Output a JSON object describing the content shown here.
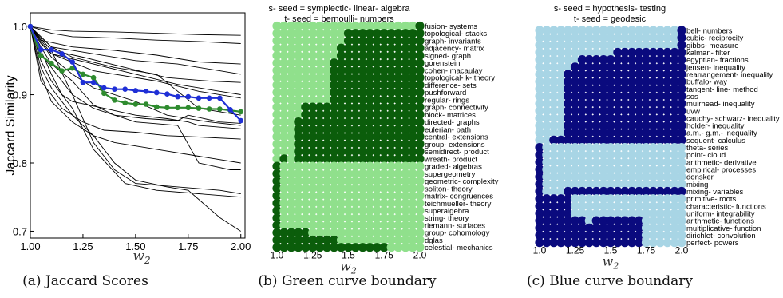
{
  "chart_data": [
    {
      "type": "line",
      "caption": "(a) Jaccard Scores",
      "xlabel": "w2",
      "ylabel": "Jaccard Similarity",
      "xlim": [
        1.0,
        2.02
      ],
      "ylim": [
        0.69,
        1.02
      ],
      "xticks": [
        "1.00",
        "1.25",
        "1.50",
        "1.75",
        "2.00"
      ],
      "yticks": [
        "0.7",
        "0.8",
        "0.9",
        "1.0"
      ],
      "highlight_colors": {
        "green": "#2e8b2e",
        "blue": "#1f2fd6"
      },
      "series": [
        {
          "color": "#2e8b2e",
          "marker": true,
          "x": [
            1.0,
            1.05,
            1.1,
            1.15,
            1.2,
            1.25,
            1.3,
            1.35,
            1.4,
            1.45,
            1.5,
            1.55,
            1.6,
            1.65,
            1.7,
            1.75,
            1.8,
            1.85,
            1.9,
            1.95,
            2.0
          ],
          "y": [
            1.0,
            0.957,
            0.946,
            0.935,
            0.939,
            0.93,
            0.925,
            0.902,
            0.892,
            0.888,
            0.886,
            0.886,
            0.882,
            0.881,
            0.881,
            0.881,
            0.88,
            0.879,
            0.879,
            0.877,
            0.875
          ]
        },
        {
          "color": "#1f2fd6",
          "marker": true,
          "x": [
            1.0,
            1.05,
            1.1,
            1.15,
            1.2,
            1.25,
            1.3,
            1.35,
            1.4,
            1.45,
            1.5,
            1.55,
            1.6,
            1.65,
            1.7,
            1.75,
            1.8,
            1.85,
            1.9,
            1.95,
            2.0
          ],
          "y": [
            1.0,
            0.966,
            0.966,
            0.96,
            0.948,
            0.918,
            0.918,
            0.91,
            0.908,
            0.908,
            0.906,
            0.905,
            0.903,
            0.901,
            0.897,
            0.897,
            0.895,
            0.895,
            0.895,
            0.878,
            0.862
          ]
        },
        {
          "color": "#000000",
          "x": [
            1.0,
            1.1,
            1.2,
            1.4,
            1.6,
            1.8,
            2.0
          ],
          "y": [
            1.0,
            0.995,
            0.993,
            0.992,
            0.99,
            0.988,
            0.987
          ]
        },
        {
          "color": "#000000",
          "x": [
            1.0,
            1.1,
            1.2,
            1.4,
            1.6,
            1.8,
            2.0
          ],
          "y": [
            1.0,
            0.99,
            0.985,
            0.983,
            0.98,
            0.978,
            0.975
          ]
        },
        {
          "color": "#000000",
          "x": [
            1.0,
            1.05,
            1.2,
            1.4,
            1.6,
            1.8,
            2.0
          ],
          "y": [
            1.0,
            0.98,
            0.97,
            0.965,
            0.958,
            0.948,
            0.945
          ]
        },
        {
          "color": "#000000",
          "x": [
            1.0,
            1.1,
            1.3,
            1.5,
            1.7,
            1.9,
            2.0
          ],
          "y": [
            1.0,
            0.97,
            0.96,
            0.95,
            0.945,
            0.935,
            0.93
          ]
        },
        {
          "color": "#000000",
          "x": [
            1.0,
            1.1,
            1.25,
            1.45,
            1.65,
            1.85,
            2.0
          ],
          "y": [
            1.0,
            0.965,
            0.955,
            0.94,
            0.925,
            0.92,
            0.918
          ]
        },
        {
          "color": "#000000",
          "x": [
            1.0,
            1.05,
            1.1,
            1.3,
            1.5,
            1.7,
            1.9,
            2.0
          ],
          "y": [
            1.0,
            0.975,
            0.96,
            0.945,
            0.93,
            0.915,
            0.905,
            0.9
          ]
        },
        {
          "color": "#000000",
          "x": [
            1.0,
            1.1,
            1.3,
            1.6,
            1.8,
            2.0
          ],
          "y": [
            1.0,
            0.96,
            0.935,
            0.92,
            0.905,
            0.895
          ]
        },
        {
          "color": "#000000",
          "x": [
            1.0,
            1.1,
            1.2,
            1.3,
            1.5,
            1.65,
            1.85,
            2.0
          ],
          "y": [
            1.0,
            0.955,
            0.93,
            0.91,
            0.89,
            0.87,
            0.86,
            0.855
          ]
        },
        {
          "color": "#000000",
          "x": [
            1.0,
            1.05,
            1.1,
            1.2,
            1.3,
            1.4,
            1.55,
            1.7,
            1.75,
            1.9,
            2.0
          ],
          "y": [
            1.0,
            0.97,
            0.945,
            0.92,
            0.885,
            0.87,
            0.865,
            0.862,
            0.87,
            0.86,
            0.858
          ]
        },
        {
          "color": "#000000",
          "x": [
            1.0,
            1.1,
            1.15,
            1.2,
            1.35,
            1.5,
            1.65,
            1.75,
            1.8,
            2.0
          ],
          "y": [
            1.0,
            0.93,
            0.9,
            0.89,
            0.88,
            0.87,
            0.865,
            0.86,
            0.855,
            0.85
          ]
        },
        {
          "color": "#000000",
          "x": [
            1.0,
            1.05,
            1.15,
            1.25,
            1.35,
            1.5,
            1.65,
            1.8,
            2.0
          ],
          "y": [
            1.0,
            0.92,
            0.88,
            0.86,
            0.848,
            0.845,
            0.84,
            0.838,
            0.835
          ]
        },
        {
          "color": "#000000",
          "x": [
            1.0,
            1.05,
            1.1,
            1.2,
            1.3,
            1.4,
            1.6,
            1.8,
            2.0
          ],
          "y": [
            1.0,
            0.93,
            0.89,
            0.86,
            0.84,
            0.83,
            0.82,
            0.81,
            0.8
          ]
        },
        {
          "color": "#000000",
          "x": [
            1.0,
            1.1,
            1.2,
            1.3,
            1.4,
            1.5,
            1.7,
            1.9,
            2.0
          ],
          "y": [
            1.0,
            0.965,
            0.9,
            0.83,
            0.79,
            0.77,
            0.765,
            0.76,
            0.755
          ]
        },
        {
          "color": "#000000",
          "x": [
            1.0,
            1.05,
            1.1,
            1.2,
            1.3,
            1.45,
            1.6,
            1.8,
            2.0
          ],
          "y": [
            1.0,
            0.95,
            0.92,
            0.88,
            0.82,
            0.77,
            0.76,
            0.755,
            0.75
          ]
        },
        {
          "color": "#000000",
          "x": [
            1.0,
            1.05,
            1.1,
            1.2,
            1.3,
            1.4,
            1.5,
            1.65,
            1.75,
            1.9,
            2.0
          ],
          "y": [
            1.0,
            0.94,
            0.91,
            0.87,
            0.84,
            0.8,
            0.775,
            0.765,
            0.76,
            0.72,
            0.7
          ]
        },
        {
          "color": "#000000",
          "x": [
            1.0,
            1.05,
            1.1,
            1.2,
            1.3,
            1.5,
            1.7,
            1.8,
            1.95,
            2.0
          ],
          "y": [
            1.0,
            0.96,
            0.94,
            0.9,
            0.88,
            0.86,
            0.855,
            0.8,
            0.79,
            0.79
          ]
        },
        {
          "color": "#000000",
          "x": [
            1.0,
            1.1,
            1.2,
            1.4,
            1.6,
            1.8,
            2.0
          ],
          "y": [
            1.0,
            0.97,
            0.955,
            0.94,
            0.93,
            0.88,
            0.87
          ]
        }
      ]
    },
    {
      "type": "heatmap",
      "caption": "(b) Green curve boundary",
      "title_lines": [
        "s- seed = symplectic- linear- algebra",
        "t- seed = bernoulli- numbers"
      ],
      "xlabel": "w2",
      "xticks": [
        "1.0",
        "1.25",
        "1.5",
        "1.75",
        "2.0"
      ],
      "colors": {
        "on": "#0b5d0b",
        "off": "#90e08c"
      },
      "columns": 21,
      "rows": [
        "fusion- systems",
        "topological- stacks",
        "graph- invariants",
        "adjacency- matrix",
        "signed- graph",
        "gorenstein",
        "cohen- macaulay",
        "topological- k- theory",
        "difference- sets",
        "pushforward",
        "regular- rings",
        "graph- connectivity",
        "block- matrices",
        "directed- graphs",
        "eulerian- path",
        "central- extensions",
        "group- extensions",
        "semidirect- product",
        "wreath- product",
        "graded- algebras",
        "supergeometry",
        "geometric- complexity",
        "soliton- theory",
        "matrix- congruences",
        "teichmueller- theory",
        "superalgebra",
        "string- theory",
        "riemann- surfaces",
        "group- cohomology",
        "dglas",
        "celestial- mechanics"
      ],
      "on_ranges": [
        [
          [
            20,
            20
          ]
        ],
        [
          [
            10,
            20
          ]
        ],
        [
          [
            10,
            20
          ]
        ],
        [
          [
            9,
            20
          ]
        ],
        [
          [
            9,
            20
          ]
        ],
        [
          [
            8,
            20
          ]
        ],
        [
          [
            8,
            20
          ]
        ],
        [
          [
            8,
            20
          ]
        ],
        [
          [
            8,
            20
          ]
        ],
        [
          [
            8,
            20
          ]
        ],
        [
          [
            8,
            20
          ]
        ],
        [
          [
            4,
            20
          ]
        ],
        [
          [
            4,
            20
          ]
        ],
        [
          [
            3,
            20
          ]
        ],
        [
          [
            3,
            20
          ]
        ],
        [
          [
            3,
            20
          ]
        ],
        [
          [
            3,
            20
          ]
        ],
        [
          [
            3,
            20
          ]
        ],
        [
          [
            1,
            1
          ],
          [
            3,
            20
          ]
        ],
        [
          [
            0,
            0
          ]
        ],
        [
          [
            0,
            0
          ]
        ],
        [
          [
            0,
            0
          ]
        ],
        [
          [
            0,
            0
          ]
        ],
        [
          [
            0,
            0
          ]
        ],
        [
          [
            0,
            0
          ]
        ],
        [
          [
            0,
            0
          ]
        ],
        [
          [
            0,
            0
          ]
        ],
        [
          [
            0,
            0
          ]
        ],
        [
          [
            0,
            4
          ]
        ],
        [
          [
            0,
            8
          ]
        ],
        [
          [
            0,
            15
          ]
        ]
      ]
    },
    {
      "type": "heatmap",
      "caption": "(c) Blue curve boundary",
      "title_lines": [
        "s- seed = hypothesis- testing",
        "t- seed = geodesic"
      ],
      "xlabel": "w2",
      "xticks": [
        "1.0",
        "1.25",
        "1.5",
        "1.75",
        "2.0"
      ],
      "colors": {
        "on": "#0a0a7e",
        "off": "#a8d5e5"
      },
      "columns": 21,
      "rows": [
        "bell- numbers",
        "cubic- reciprocity",
        "gibbs- measure",
        "kalman- filter",
        "egyptian- fractions",
        "jensen- inequality",
        "rearrangement- inequality",
        "buffalo- way",
        "tangent- line- method",
        "sos",
        "muirhead- inequality",
        "uvw",
        "cauchy- schwarz- inequality",
        "holder- inequality",
        "a.m.- g.m.- inequality",
        "sequent- calculus",
        "theta- series",
        "point- cloud",
        "arithmetic- derivative",
        "empirical- processes",
        "donsker",
        "mixing",
        "mixing- variables",
        "primitive- roots",
        "characteristic- functions",
        "uniform- integrability",
        "arithmetic- functions",
        "multiplicative- function",
        "dirichlet- convolution",
        "perfect- powers"
      ],
      "on_ranges": [
        [
          [
            20,
            20
          ]
        ],
        [
          [
            20,
            20
          ]
        ],
        [
          [
            20,
            20
          ]
        ],
        [
          [
            11,
            20
          ]
        ],
        [
          [
            6,
            20
          ]
        ],
        [
          [
            5,
            20
          ]
        ],
        [
          [
            4,
            20
          ]
        ],
        [
          [
            4,
            20
          ]
        ],
        [
          [
            4,
            20
          ]
        ],
        [
          [
            4,
            20
          ]
        ],
        [
          [
            4,
            20
          ]
        ],
        [
          [
            4,
            20
          ]
        ],
        [
          [
            4,
            20
          ]
        ],
        [
          [
            4,
            20
          ]
        ],
        [
          [
            4,
            20
          ]
        ],
        [
          [
            2,
            20
          ]
        ],
        [
          [
            0,
            0
          ]
        ],
        [
          [
            0,
            0
          ]
        ],
        [
          [
            0,
            0
          ]
        ],
        [
          [
            0,
            0
          ]
        ],
        [
          [
            0,
            0
          ]
        ],
        [
          [
            0,
            0
          ]
        ],
        [
          [
            0,
            0
          ],
          [
            4,
            20
          ]
        ],
        [
          [
            0,
            4
          ]
        ],
        [
          [
            0,
            4
          ]
        ],
        [
          [
            0,
            4
          ]
        ],
        [
          [
            0,
            6
          ],
          [
            8,
            14
          ]
        ],
        [
          [
            0,
            14
          ]
        ],
        [
          [
            0,
            14
          ]
        ],
        [
          [
            0,
            14
          ]
        ]
      ]
    }
  ]
}
